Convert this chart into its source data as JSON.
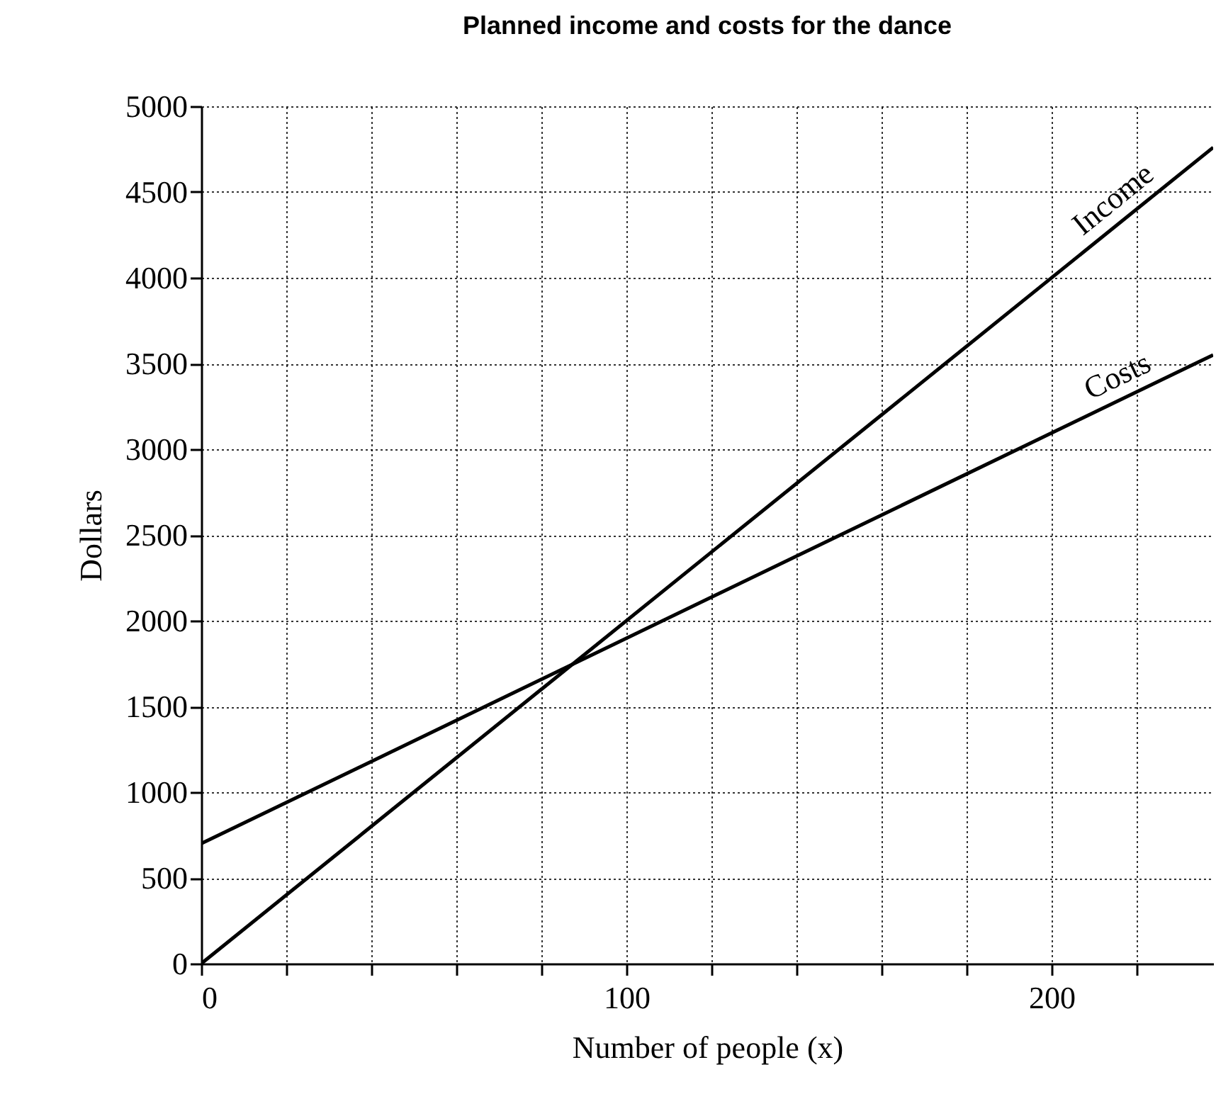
{
  "chart_data": {
    "type": "line",
    "title": "Planned income and costs for the dance",
    "xlabel": "Number of people (x)",
    "ylabel": "Dollars",
    "series": [
      {
        "name": "Income",
        "color": "#000000",
        "values": [
          0,
          4760
        ]
      },
      {
        "name": "Costs",
        "color": "#000000",
        "values": [
          700,
          3550
        ]
      }
    ],
    "x": [
      0,
      238
    ],
    "xlim": [
      0,
      238
    ],
    "xticks": [
      0,
      {
        "value": 20,
        "label": null
      },
      {
        "value": 40,
        "label": null
      },
      {
        "value": 60,
        "label": null
      },
      {
        "value": 80,
        "label": null
      },
      100,
      {
        "value": 120,
        "label": null
      },
      {
        "value": 140,
        "label": null
      },
      {
        "value": 160,
        "label": null
      },
      {
        "value": 180,
        "label": null
      },
      200,
      {
        "value": 220,
        "label": null
      }
    ],
    "ylim": [
      0,
      5000
    ],
    "yticks": [
      0,
      500,
      1000,
      1500,
      2000,
      2500,
      3000,
      3500,
      4000,
      4500,
      5000
    ],
    "grid": true,
    "legend": false,
    "marker": "none",
    "line_style": "solid"
  }
}
